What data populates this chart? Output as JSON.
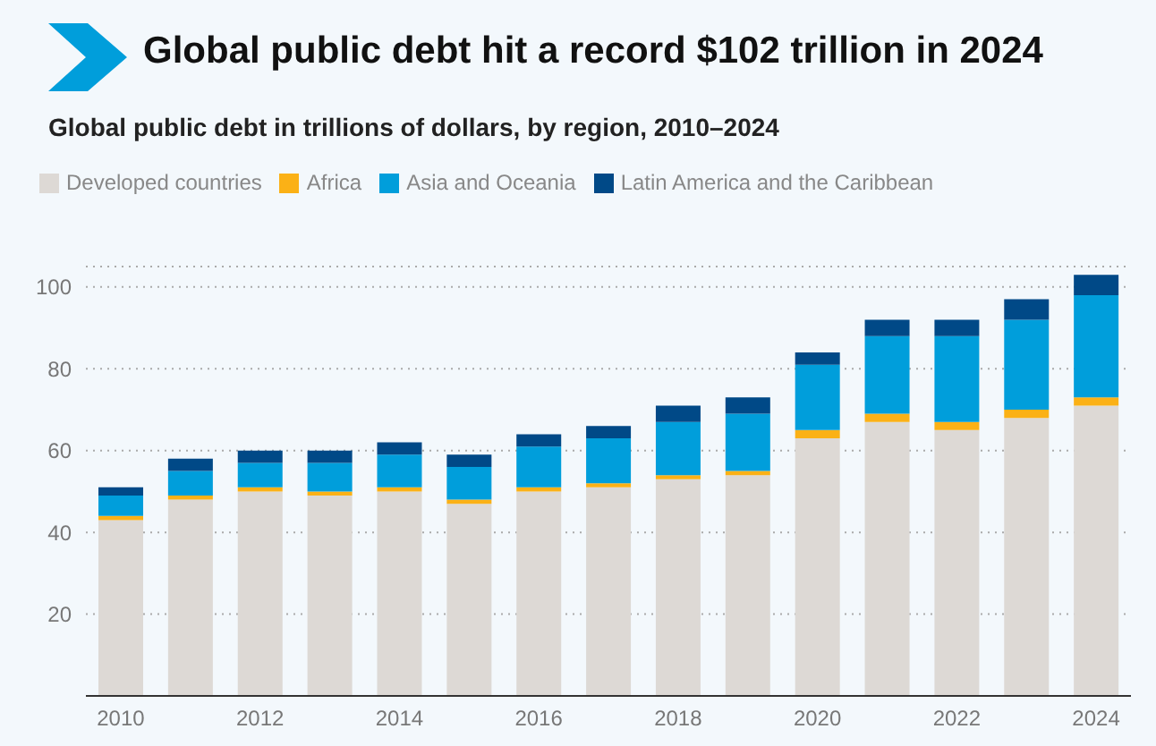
{
  "chart_data": {
    "type": "bar",
    "title": "Global public debt hit a record $102 trillion in 2024",
    "subtitle": "Global public debt in trillions of dollars, by region, 2010–2024",
    "categories": [
      "2010",
      null,
      "2012",
      null,
      "2014",
      null,
      "2016",
      null,
      "2018",
      null,
      "2020",
      null,
      "2022",
      null,
      "2024"
    ],
    "stacked": true,
    "series": [
      {
        "name": "Developed countries",
        "color": "#ddd9d5",
        "values": [
          43,
          48,
          50,
          49,
          50,
          47,
          50,
          51,
          53,
          54,
          63,
          67,
          65,
          68,
          71
        ]
      },
      {
        "name": "Africa",
        "color": "#fbb116",
        "values": [
          1,
          1,
          1,
          1,
          1,
          1,
          1,
          1,
          1,
          1,
          2,
          2,
          2,
          2,
          2
        ]
      },
      {
        "name": "Asia and Oceania",
        "color": "#009edb",
        "values": [
          5,
          6,
          6,
          7,
          8,
          8,
          10,
          11,
          13,
          14,
          16,
          19,
          21,
          22,
          25
        ]
      },
      {
        "name": "Latin America and the Caribbean",
        "color": "#004987",
        "values": [
          2,
          3,
          3,
          3,
          3,
          3,
          3,
          3,
          4,
          4,
          3,
          4,
          4,
          5,
          5
        ]
      }
    ],
    "ylim": [
      0,
      105
    ],
    "yticks": [
      {
        "value": 0,
        "label": null
      },
      20,
      40,
      60,
      80,
      100
    ],
    "grid": "y",
    "legend": "top left"
  }
}
